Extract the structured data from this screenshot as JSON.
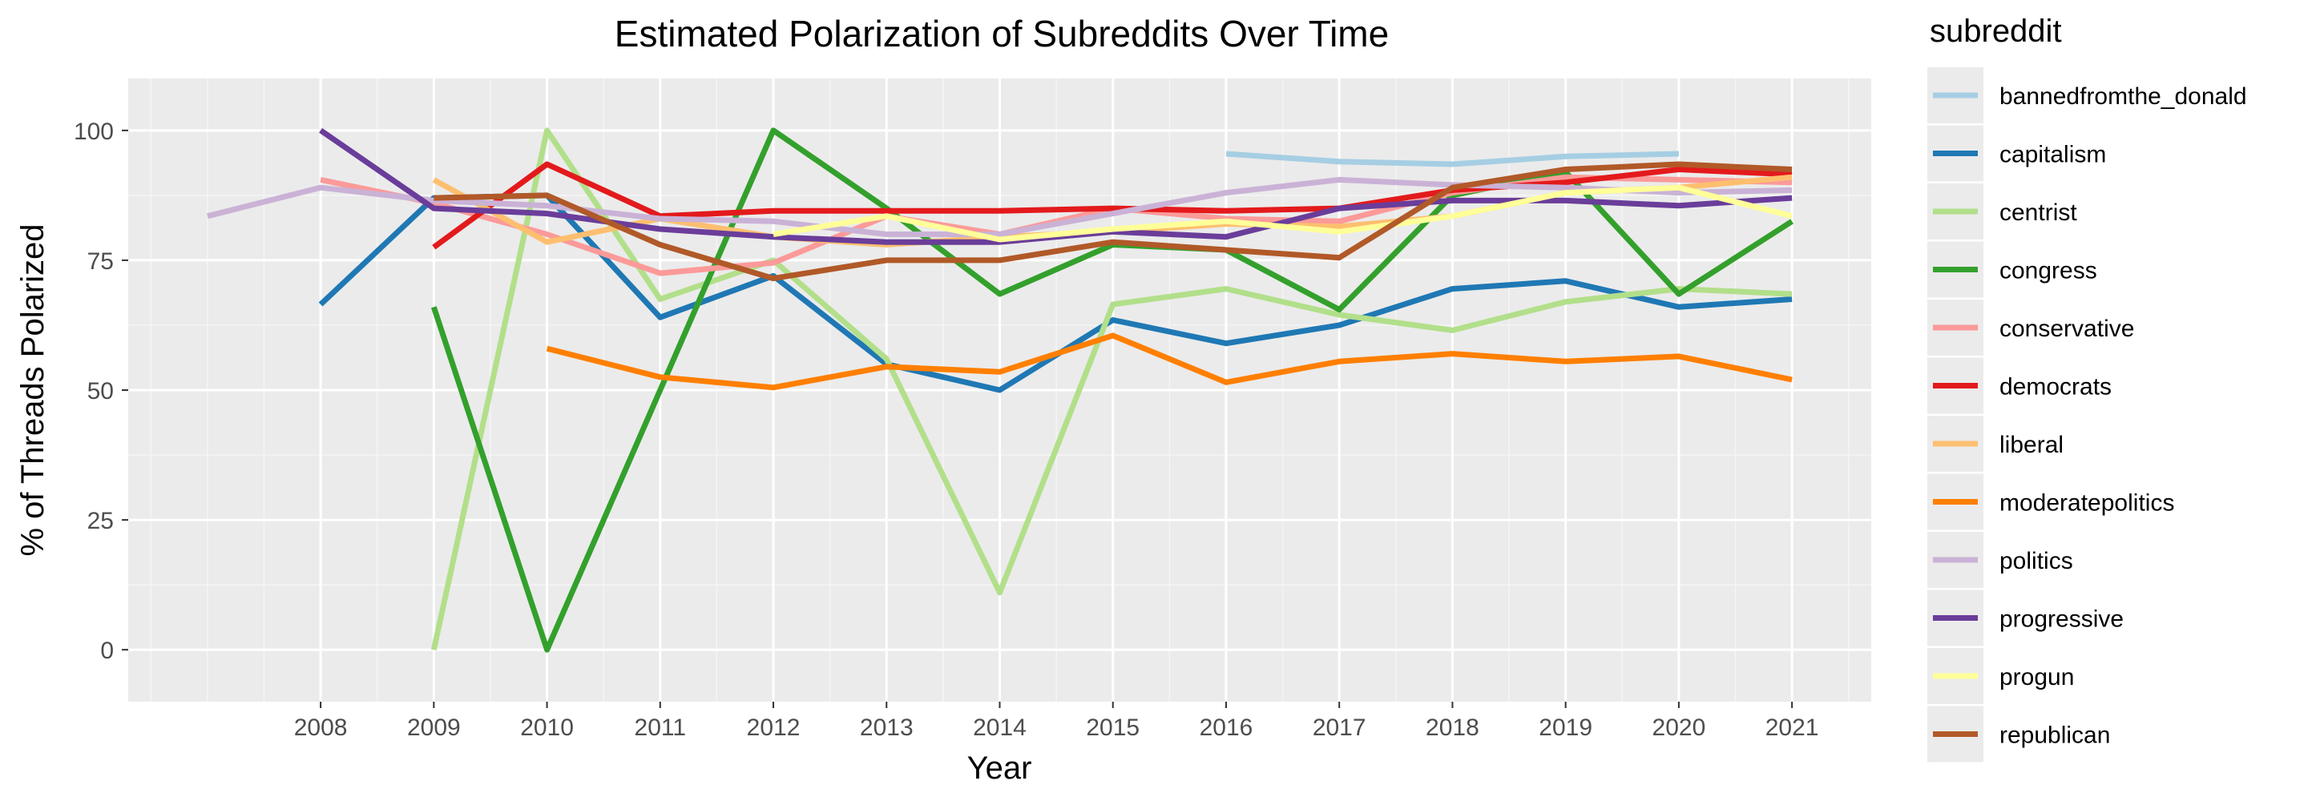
{
  "chart_data": {
    "type": "line",
    "title": "Estimated Polarization of Subreddits Over Time",
    "xlabel": "Year",
    "ylabel": "% of Threads Polarized",
    "xlim": [
      2006.3,
      2021.7
    ],
    "ylim": [
      -10,
      110
    ],
    "x_ticks": [
      2008,
      2009,
      2010,
      2011,
      2012,
      2013,
      2014,
      2015,
      2016,
      2017,
      2018,
      2019,
      2020,
      2021
    ],
    "y_ticks": [
      0,
      25,
      50,
      75,
      100
    ],
    "grid": true,
    "legend_title": "subreddit",
    "legend_position": "right",
    "series": [
      {
        "name": "bannedfromthe_donald",
        "color": "#a6cee3",
        "x": [
          2016,
          2017,
          2018,
          2019,
          2020
        ],
        "y": [
          95.5,
          94,
          93.5,
          95,
          95.5
        ]
      },
      {
        "name": "capitalism",
        "color": "#1f78b4",
        "x": [
          2008,
          2009,
          2010,
          2011,
          2012,
          2013,
          2014,
          2015,
          2016,
          2017,
          2018,
          2019,
          2020,
          2021
        ],
        "y": [
          66.5,
          87,
          87.5,
          64,
          72,
          55,
          50,
          63.5,
          59,
          62.5,
          69.5,
          71,
          66,
          67.5
        ]
      },
      {
        "name": "centrist",
        "color": "#b2df8a",
        "x": [
          2009,
          2010,
          2011,
          2012,
          2013,
          2014,
          2015,
          2016,
          2017,
          2018,
          2019,
          2020,
          2021
        ],
        "y": [
          0,
          100,
          67.5,
          75,
          56,
          11,
          66.5,
          69.5,
          64.5,
          61.5,
          67,
          69.5,
          68.5
        ]
      },
      {
        "name": "congress",
        "color": "#33a02c",
        "x": [
          2009,
          2010,
          2011,
          2012,
          2013,
          2014,
          2015,
          2016,
          2017,
          2018,
          2019,
          2020,
          2021
        ],
        "y": [
          66,
          0,
          50,
          100,
          85,
          68.5,
          78,
          77,
          65.5,
          87.5,
          92,
          68.5,
          82.5
        ]
      },
      {
        "name": "conservative",
        "color": "#fb9a99",
        "x": [
          2008,
          2009,
          2010,
          2011,
          2012,
          2013,
          2014,
          2015,
          2016,
          2017,
          2018,
          2019,
          2020,
          2021
        ],
        "y": [
          90.5,
          86,
          80,
          72.5,
          74.5,
          83.5,
          80,
          85,
          83,
          82.5,
          88,
          91,
          90.5,
          90
        ]
      },
      {
        "name": "democrats",
        "color": "#e31a1c",
        "x": [
          2009,
          2010,
          2011,
          2012,
          2013,
          2014,
          2015,
          2016,
          2017,
          2018,
          2019,
          2020,
          2021
        ],
        "y": [
          77.5,
          93.5,
          83.5,
          84.5,
          84.5,
          84.5,
          85,
          84.5,
          85,
          88.5,
          90,
          92.5,
          91.5
        ]
      },
      {
        "name": "liberal",
        "color": "#fdbf6f",
        "x": [
          2009,
          2010,
          2011,
          2012,
          2013,
          2014,
          2015,
          2016,
          2017,
          2018,
          2019,
          2020,
          2021
        ],
        "y": [
          90.5,
          78.5,
          83,
          79.5,
          78,
          79.5,
          80.5,
          82,
          81.5,
          83.5,
          88,
          89,
          91
        ]
      },
      {
        "name": "moderatepolitics",
        "color": "#ff7f00",
        "x": [
          2010,
          2011,
          2012,
          2013,
          2014,
          2015,
          2016,
          2017,
          2018,
          2019,
          2020,
          2021
        ],
        "y": [
          58,
          52.5,
          50.5,
          54.5,
          53.5,
          60.5,
          51.5,
          55.5,
          57,
          55.5,
          56.5,
          52
        ]
      },
      {
        "name": "politics",
        "color": "#cab2d6",
        "x": [
          2007,
          2008,
          2009,
          2010,
          2011,
          2012,
          2013,
          2014,
          2015,
          2016,
          2017,
          2018,
          2019,
          2020,
          2021
        ],
        "y": [
          83.5,
          89,
          86.5,
          85.5,
          83,
          82.5,
          80,
          80,
          84,
          88,
          90.5,
          89.5,
          89,
          88,
          88.5
        ]
      },
      {
        "name": "progressive",
        "color": "#6a3d9a",
        "x": [
          2008,
          2009,
          2010,
          2011,
          2012,
          2013,
          2014,
          2015,
          2016,
          2017,
          2018,
          2019,
          2020,
          2021
        ],
        "y": [
          100,
          85,
          84,
          81,
          79.5,
          78.5,
          78.5,
          80.5,
          79.5,
          85,
          86.5,
          86.5,
          85.5,
          87
        ]
      },
      {
        "name": "progun",
        "color": "#ffff99",
        "x": [
          2012,
          2013,
          2014,
          2015,
          2016,
          2017,
          2018,
          2019,
          2020,
          2021
        ],
        "y": [
          80,
          83.5,
          79,
          81,
          82.5,
          80.5,
          83.5,
          88,
          89,
          83.5
        ]
      },
      {
        "name": "republican",
        "color": "#b15928",
        "x": [
          2009,
          2010,
          2011,
          2012,
          2013,
          2014,
          2015,
          2016,
          2017,
          2018,
          2019,
          2020,
          2021
        ],
        "y": [
          87,
          87.5,
          78,
          71.5,
          75,
          75,
          78.5,
          77,
          75.5,
          89,
          92.5,
          93.5,
          92.5
        ]
      }
    ]
  }
}
